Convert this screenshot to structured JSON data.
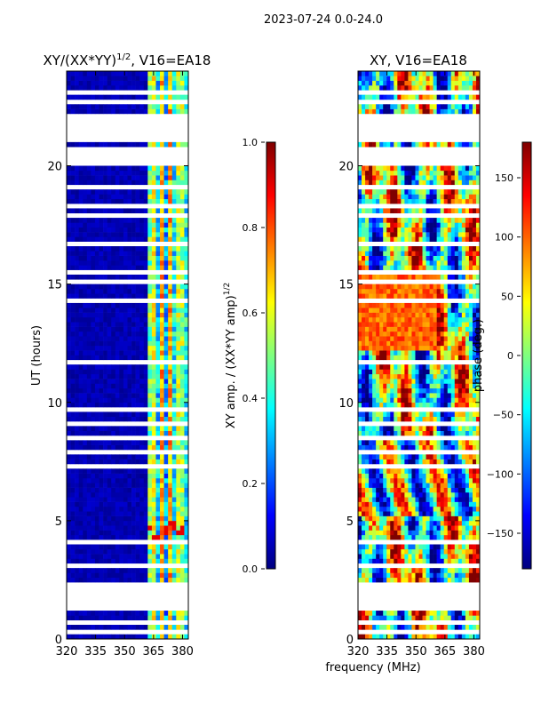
{
  "figure": {
    "suptitle": "2023-07-24 0.0-24.0",
    "xlabel": "frequency (MHz)"
  },
  "chart_data": [
    {
      "type": "heatmap",
      "panel": "amplitude-ratio",
      "title_main": "XY/(XX*YY)",
      "title_sup": "1/2",
      "title_tail": ", V16=EA18",
      "ylabel": "UT (hours)",
      "xlim": [
        320,
        383
      ],
      "ylim": [
        0,
        24
      ],
      "xticks": [
        320,
        335,
        350,
        365,
        380
      ],
      "yticks": [
        0,
        5,
        10,
        15,
        20
      ],
      "colormap": "jet",
      "colorbar": {
        "label_main": "XY amp. / (XX*YY amp)",
        "label_sup": "1/2",
        "range": [
          0.0,
          1.0
        ],
        "ticks": [
          "0.0",
          "0.2",
          "0.4",
          "0.6",
          "0.8",
          "1.0"
        ]
      }
    },
    {
      "type": "heatmap",
      "panel": "phase",
      "title": "XY, V16=EA18",
      "ylabel": "",
      "xlim": [
        320,
        383
      ],
      "ylim": [
        0,
        24
      ],
      "xticks": [
        320,
        335,
        350,
        365,
        380
      ],
      "yticks": [
        0,
        5,
        10,
        15,
        20
      ],
      "colormap": "jet",
      "colorbar": {
        "label": "phase (deg.)",
        "range": [
          -180,
          180
        ],
        "ticks": [
          "−150",
          "−100",
          "−50",
          "0",
          "50",
          "100",
          "150"
        ]
      }
    }
  ],
  "colors": {
    "jet": [
      "#00007f",
      "#0000ff",
      "#007fff",
      "#00ffff",
      "#7fff7f",
      "#ffff00",
      "#ff7f00",
      "#ff0000",
      "#7f0000"
    ],
    "background": "#ffffff"
  }
}
